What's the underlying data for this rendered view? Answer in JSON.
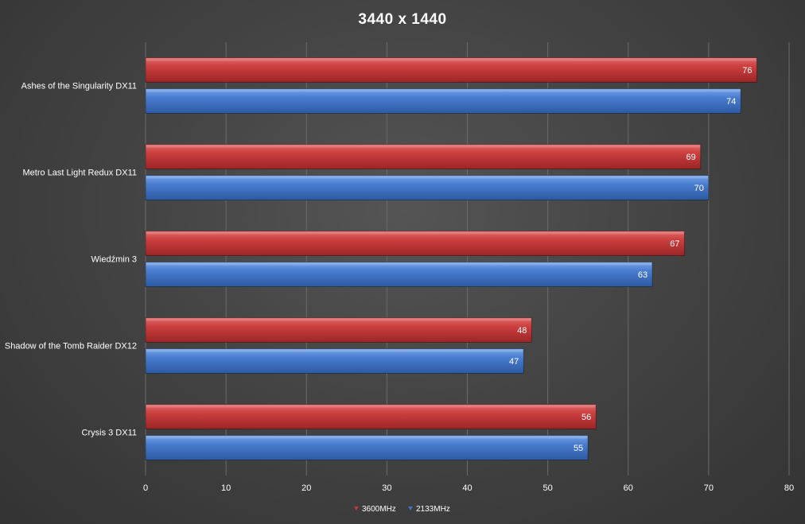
{
  "chart_data": {
    "type": "bar",
    "orientation": "horizontal",
    "title": "3440 x 1440",
    "categories": [
      "Ashes of the Singularity DX11",
      "Metro Last Light Redux DX11",
      "Wiedźmin 3",
      "Shadow of the Tomb Raider DX12",
      "Crysis 3 DX11"
    ],
    "series": [
      {
        "name": "3600MHz",
        "color": "#c0393b",
        "values": [
          76,
          69,
          67,
          48,
          56
        ]
      },
      {
        "name": "2133MHz",
        "color": "#4472c4",
        "values": [
          74,
          70,
          63,
          47,
          55
        ]
      }
    ],
    "xlim": [
      0,
      80
    ],
    "xticks": [
      0,
      10,
      20,
      30,
      40,
      50,
      60,
      70,
      80
    ],
    "grid": true,
    "legend_position": "bottom",
    "data_labels": true
  }
}
